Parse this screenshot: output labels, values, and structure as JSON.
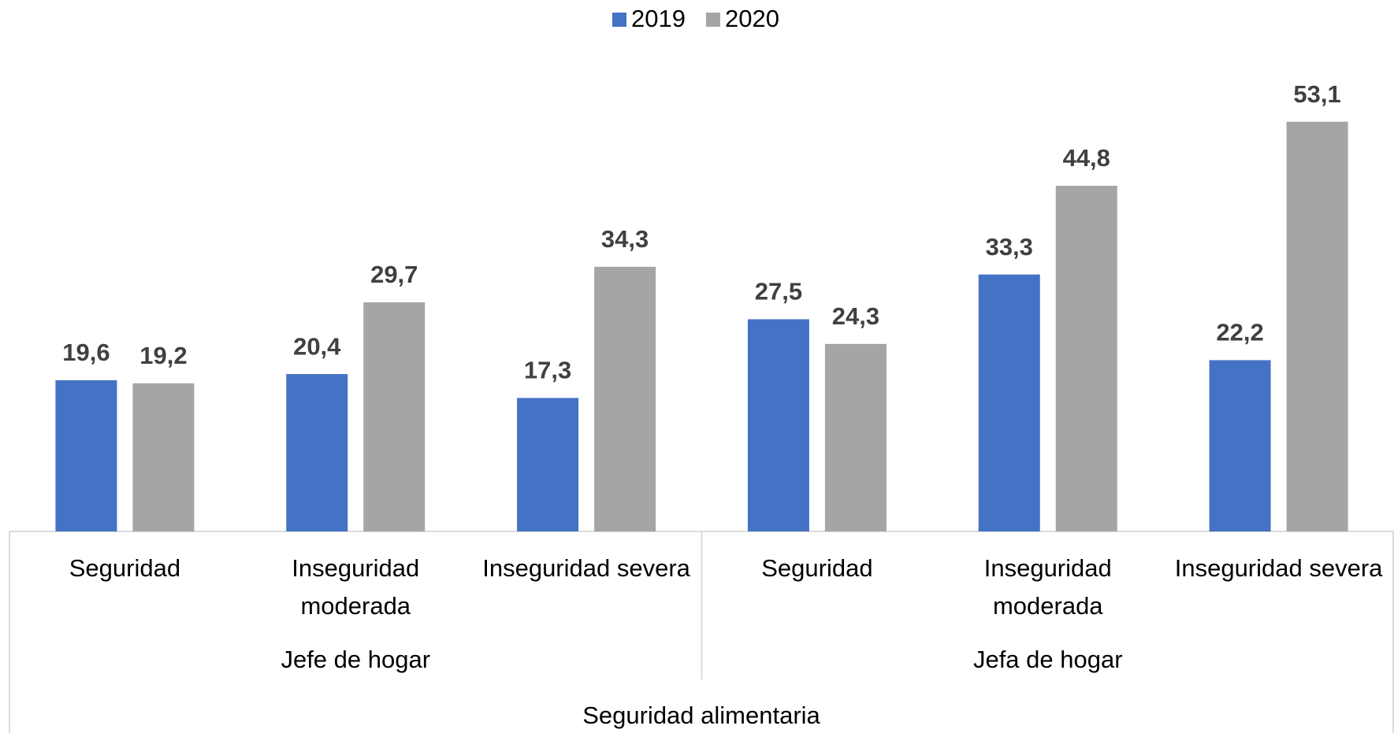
{
  "chart_data": {
    "type": "bar",
    "x_label": "Seguridad alimentaria",
    "categories": [
      "Seguridad",
      "Inseguridad moderada",
      "Inseguridad severa",
      "Seguridad",
      "Inseguridad moderada",
      "Inseguridad severa"
    ],
    "groups": [
      {
        "label": "Jefe de hogar",
        "size": 3
      },
      {
        "label": "Jefa de hogar",
        "size": 3
      }
    ],
    "series": [
      {
        "name": "2019",
        "color": "#4472c4",
        "values": [
          19.6,
          20.4,
          17.3,
          27.5,
          33.3,
          22.2
        ],
        "value_labels": [
          "19,6",
          "20,4",
          "17,3",
          "27,5",
          "33,3",
          "22,2"
        ]
      },
      {
        "name": "2020",
        "color": "#a5a5a5",
        "values": [
          19.2,
          29.7,
          34.3,
          24.3,
          44.8,
          53.1
        ],
        "value_labels": [
          "19,2",
          "29,7",
          "34,3",
          "24,3",
          "44,8",
          "53,1"
        ]
      }
    ],
    "ylim": [
      0,
      60
    ],
    "legend": "top"
  }
}
